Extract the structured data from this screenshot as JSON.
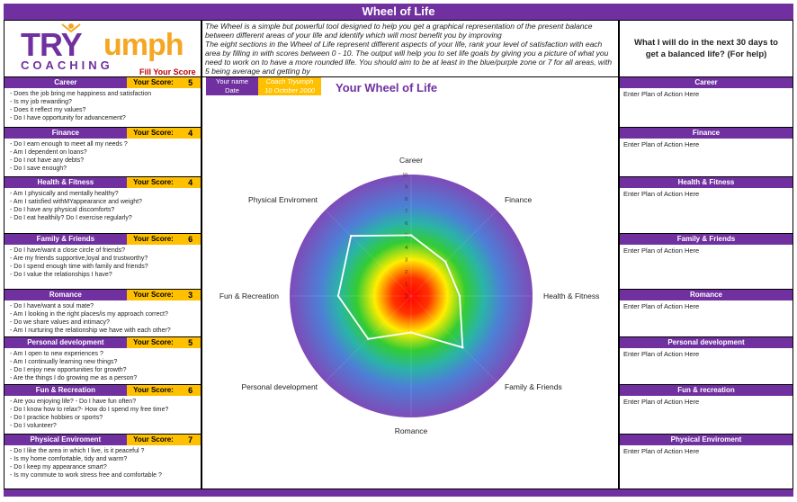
{
  "title": "Wheel of Life",
  "logo": {
    "part1": "TRY",
    "part2": "umph",
    "sub": "COACHING"
  },
  "fill_score": "Fill Your Score",
  "intro": "The Wheel is a simple but powerful tool designed to help you get a graphical representation of the present balance between different areas of your life and identify which will most benefit you by improving\nThe eight sections in the Wheel of Life represent different aspects of your life, rank your level of satisfaction with each area by filling in with scores between 0 - 10. The output will help you to set life goals by giving you a picture of what you need to work on to have a more rounded life. You should aim to be at least in the blue/purple zone or 7 for all areas, with 5 being average and getting by",
  "plan_header": "What I will do in the next 30 days to get a balanced life? (For help)",
  "your_score_label": "Your Score:",
  "user": {
    "name_label": "Your name",
    "date_label": "Date",
    "name": "Coach Tryumph",
    "date": "10 October 2000"
  },
  "wheel_title": "Your Wheel of Life",
  "categories": [
    {
      "name": "Career",
      "score": "5",
      "questions": [
        "- Does the job bring me happiness and satisfaction",
        "- Is my job rewarding?",
        "- Does it reflect my values?",
        "- Do I have opportunity for advancement?"
      ]
    },
    {
      "name": "Finance",
      "score": "4",
      "questions": [
        "- Do I earn enough to meet all my needs ?",
        "- Am I dependent on loans?",
        "- Do I not have any debts?",
        "- Do I save enough?"
      ]
    },
    {
      "name": "Health & Fitness",
      "score": "4",
      "questions": [
        "- Am I physically and mentally healthy?",
        "- Am I satisfied withMYappearance and weight?",
        "- Do I have any physical discomforts?",
        "- Do I eat healthily?  Do I exercise regularly?"
      ]
    },
    {
      "name": "Family & Friends",
      "score": "6",
      "questions": [
        "- Do I have/want a close circle of friends?",
        "- Are my friends supportive,loyal and trustworthy?",
        "- Do I spend enough time with family and friends?",
        "- Do I value the relationships I have?"
      ]
    },
    {
      "name": "Romance",
      "score": "3",
      "questions": [
        "- Do I have/want a soul mate?",
        "- Am I looking in the right places/is my approach correct?",
        "- Do we share values and intimacy?",
        "- Am I nurturing the relationship we have with each other?"
      ]
    },
    {
      "name": "Personal development",
      "score": "5",
      "questions": [
        "- Am I open to new experiences ?",
        "- Am I continually learning new things?",
        "- Do I enjoy new opportunities for growth?",
        "- Are the things I do growing me as a person?"
      ]
    },
    {
      "name": "Fun & Recreation",
      "score": "6",
      "questions": [
        "- Are you enjoying life? - Do I have fun often?",
        "- Do I know how to relax?- How do I spend my free time?",
        "- Do I practice hobbies or sports?",
        "- Do I volunteer?"
      ]
    },
    {
      "name": "Physical Enviroment",
      "score": "7",
      "questions": [
        "- Do I like the area in which I live, is it peaceful ?",
        "- Is my home comfortable, tidy and warm?",
        "- Do I keep my appearance smart?",
        "- Is my commute to work stress free and comfortable ?"
      ]
    }
  ],
  "plans": [
    {
      "name": "Career",
      "text": "Enter Plan of Action Here"
    },
    {
      "name": "Finance",
      "text": "Enter Plan of Action Here"
    },
    {
      "name": "Health & Fitness",
      "text": "Enter Plan of Action Here"
    },
    {
      "name": "Family & Friends",
      "text": "Enter Plan of Action Here"
    },
    {
      "name": "Romance",
      "text": "Enter Plan of Action Here"
    },
    {
      "name": "Personal development",
      "text": "Enter Plan of Action Here"
    },
    {
      "name": "Fun & recreation",
      "text": "Enter Plan of Action Here"
    },
    {
      "name": "Physical Enviroment",
      "text": "Enter Plan of Action Here"
    }
  ],
  "chart_data": {
    "type": "radar",
    "axes": [
      "Career",
      "Finance",
      "Health & Fitness",
      "Family & Friends",
      "Romance",
      "Personal development",
      "Fun & Recreation",
      "Physical Enviroment"
    ],
    "values": [
      5,
      4,
      4,
      6,
      3,
      5,
      6,
      7
    ],
    "range": [
      0,
      10
    ],
    "ticks": [
      "0",
      "1",
      "2",
      "3",
      "4",
      "5",
      "6",
      "7",
      "8",
      "9",
      "10"
    ],
    "colors": {
      "center": "#ff0000",
      "outer": "#7030a0",
      "line": "#ffffff"
    }
  }
}
